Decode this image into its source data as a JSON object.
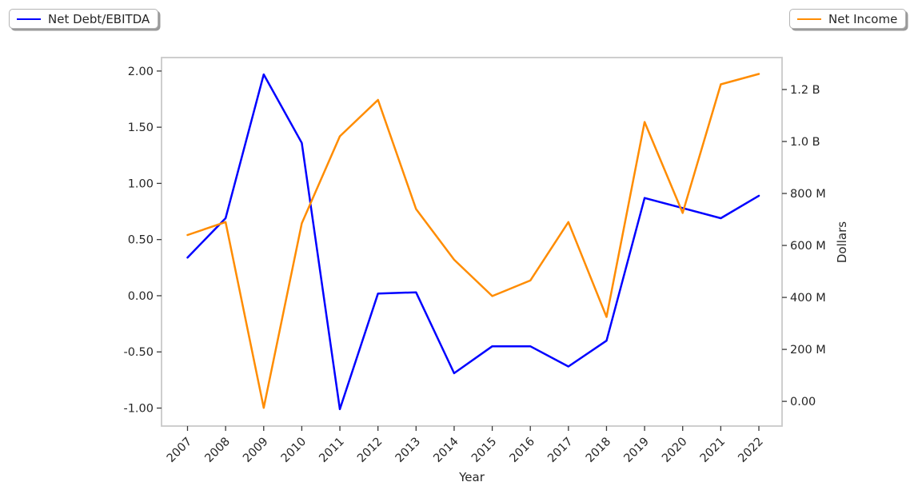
{
  "figure": {
    "background": "#ffffff"
  },
  "legends": {
    "net_debt": {
      "label": "Net Debt/EBITDA",
      "color": "#0000ff"
    },
    "net_income": {
      "label": "Net Income",
      "color": "#ff8c00"
    }
  },
  "chart_data": {
    "type": "line",
    "title": "",
    "xlabel": "Year",
    "ylabel_left": "",
    "ylabel_right": "Dollars",
    "x": [
      2007,
      2008,
      2009,
      2010,
      2011,
      2012,
      2013,
      2014,
      2015,
      2016,
      2017,
      2018,
      2019,
      2020,
      2021,
      2022
    ],
    "series": [
      {
        "name": "Net Debt/EBITDA",
        "axis": "left",
        "color": "#0000ff",
        "values": [
          0.34,
          0.69,
          1.97,
          1.36,
          -1.01,
          0.02,
          0.03,
          -0.69,
          -0.45,
          -0.45,
          -0.63,
          -0.4,
          0.87,
          0.78,
          0.69,
          0.89
        ]
      },
      {
        "name": "Net Income",
        "axis": "right",
        "color": "#ff8c00",
        "unit": "USD millions",
        "values": [
          640,
          690,
          -25,
          685,
          1020,
          1160,
          740,
          545,
          405,
          465,
          690,
          325,
          1075,
          725,
          1220,
          1260
        ]
      }
    ],
    "left_axis": {
      "tick_labels": [
        "2.00",
        "1.50",
        "1.00",
        "0.50",
        "0.00",
        "-0.50",
        "-1.00"
      ],
      "tick_values": [
        2.0,
        1.5,
        1.0,
        0.5,
        0.0,
        -0.5,
        -1.0
      ],
      "ylim": [
        -1.16,
        2.12
      ]
    },
    "right_axis": {
      "tick_labels": [
        "1.2 B",
        "1.0 B",
        "800 M",
        "600 M",
        "400 M",
        "200 M",
        "0.00"
      ],
      "tick_values_millions": [
        1200,
        1000,
        800,
        600,
        400,
        200,
        0
      ],
      "ylim_millions": [
        -95,
        1323
      ]
    },
    "grid": false,
    "legend_position": [
      "figure upper left",
      "figure upper right"
    ]
  }
}
